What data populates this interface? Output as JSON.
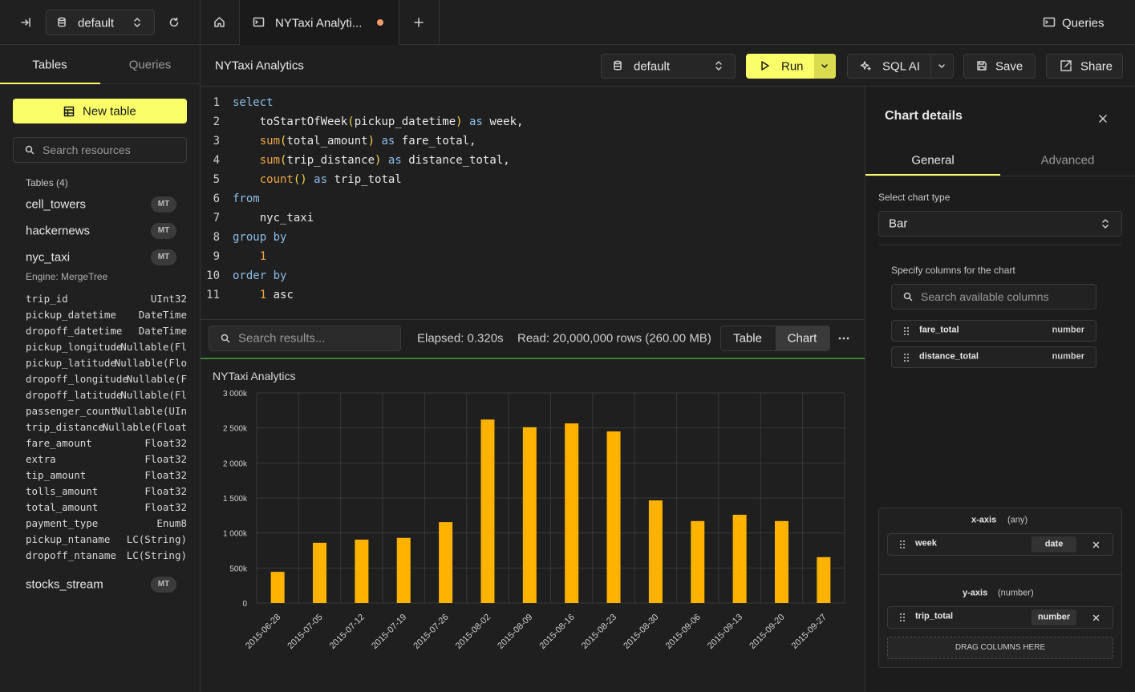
{
  "sidebar": {
    "database": "default",
    "tabs": [
      "Tables",
      "Queries"
    ],
    "new_table": "New table",
    "search_placeholder": "Search resources",
    "tables_heading": "Tables (4)",
    "tables": [
      {
        "name": "cell_towers",
        "badge": "MT"
      },
      {
        "name": "hackernews",
        "badge": "MT"
      },
      {
        "name": "nyc_taxi",
        "badge": "MT",
        "engine": "Engine: MergeTree",
        "columns": [
          {
            "name": "trip_id",
            "type": "UInt32"
          },
          {
            "name": "pickup_datetime",
            "type": "DateTime"
          },
          {
            "name": "dropoff_datetime",
            "type": "DateTime"
          },
          {
            "name": "pickup_longitude",
            "type": "Nullable(Fl"
          },
          {
            "name": "pickup_latitude",
            "type": "Nullable(Flo"
          },
          {
            "name": "dropoff_longitude",
            "type": "Nullable(F"
          },
          {
            "name": "dropoff_latitude",
            "type": "Nullable(Fl"
          },
          {
            "name": "passenger_count",
            "type": "Nullable(UIn"
          },
          {
            "name": "trip_distance",
            "type": "Nullable(Float"
          },
          {
            "name": "fare_amount",
            "type": "Float32"
          },
          {
            "name": "extra",
            "type": "Float32"
          },
          {
            "name": "tip_amount",
            "type": "Float32"
          },
          {
            "name": "tolls_amount",
            "type": "Float32"
          },
          {
            "name": "total_amount",
            "type": "Float32"
          },
          {
            "name": "payment_type",
            "type": "Enum8"
          },
          {
            "name": "pickup_ntaname",
            "type": "LC(String)"
          },
          {
            "name": "dropoff_ntaname",
            "type": "LC(String)"
          }
        ]
      },
      {
        "name": "stocks_stream",
        "badge": "MT"
      }
    ]
  },
  "tabs": {
    "active_tab": "NYTaxi Analyti...",
    "queries": "Queries"
  },
  "toolbar": {
    "title": "NYTaxi Analytics",
    "database": "default",
    "run": "Run",
    "sql_ai": "SQL AI",
    "save": "Save",
    "share": "Share"
  },
  "editor": {
    "lines": [
      {
        "n": 1,
        "tokens": [
          {
            "t": "select",
            "c": "#8cbde8"
          }
        ]
      },
      {
        "n": 2,
        "tokens": [
          {
            "t": "    toStartOfWeek",
            "c": "#e8e8e8"
          },
          {
            "t": "(",
            "c": "#f2d64b"
          },
          {
            "t": "pickup_datetime",
            "c": "#e8e8e8"
          },
          {
            "t": ")",
            "c": "#f2d64b"
          },
          {
            "t": " as ",
            "c": "#8cbde8"
          },
          {
            "t": "week,",
            "c": "#e8e8e8"
          }
        ]
      },
      {
        "n": 3,
        "tokens": [
          {
            "t": "    sum",
            "c": "#f0a646"
          },
          {
            "t": "(",
            "c": "#f2d64b"
          },
          {
            "t": "total_amount",
            "c": "#e8e8e8"
          },
          {
            "t": ")",
            "c": "#f2d64b"
          },
          {
            "t": " as ",
            "c": "#8cbde8"
          },
          {
            "t": "fare_total,",
            "c": "#e8e8e8"
          }
        ]
      },
      {
        "n": 4,
        "tokens": [
          {
            "t": "    sum",
            "c": "#f0a646"
          },
          {
            "t": "(",
            "c": "#f2d64b"
          },
          {
            "t": "trip_distance",
            "c": "#e8e8e8"
          },
          {
            "t": ")",
            "c": "#f2d64b"
          },
          {
            "t": " as ",
            "c": "#8cbde8"
          },
          {
            "t": "distance_total,",
            "c": "#e8e8e8"
          }
        ]
      },
      {
        "n": 5,
        "tokens": [
          {
            "t": "    count",
            "c": "#f0a646"
          },
          {
            "t": "()",
            "c": "#f2d64b"
          },
          {
            "t": " as ",
            "c": "#8cbde8"
          },
          {
            "t": "trip_total",
            "c": "#e8e8e8"
          }
        ]
      },
      {
        "n": 6,
        "tokens": [
          {
            "t": "from",
            "c": "#8cbde8"
          }
        ]
      },
      {
        "n": 7,
        "tokens": [
          {
            "t": "    nyc_taxi",
            "c": "#e8e8e8"
          }
        ]
      },
      {
        "n": 8,
        "tokens": [
          {
            "t": "group by",
            "c": "#8cbde8"
          }
        ]
      },
      {
        "n": 9,
        "tokens": [
          {
            "t": "    1",
            "c": "#f0a646"
          }
        ]
      },
      {
        "n": 10,
        "tokens": [
          {
            "t": "order by",
            "c": "#8cbde8"
          }
        ]
      },
      {
        "n": 11,
        "tokens": [
          {
            "t": "    1",
            "c": "#f0a646"
          },
          {
            "t": " asc",
            "c": "#e8e8e8"
          }
        ]
      }
    ]
  },
  "results": {
    "search_placeholder": "Search results...",
    "elapsed": "Elapsed: 0.320s",
    "read": "Read: 20,000,000 rows (260.00 MB)",
    "views": [
      "Table",
      "Chart"
    ]
  },
  "chart_data": {
    "type": "bar",
    "title": "NYTaxi Analytics",
    "x": [
      "2015-06-28",
      "2015-07-05",
      "2015-07-12",
      "2015-07-19",
      "2015-07-26",
      "2015-08-02",
      "2015-08-09",
      "2015-08-16",
      "2015-08-23",
      "2015-08-30",
      "2015-09-06",
      "2015-09-13",
      "2015-09-20",
      "2015-09-27"
    ],
    "values": [
      445000,
      860000,
      905000,
      930000,
      1155000,
      2620000,
      2510000,
      2565000,
      2450000,
      1465000,
      1170000,
      1260000,
      1170000,
      655000
    ],
    "color": "#ffb300",
    "ylim": [
      0,
      3000000
    ],
    "yticks": [
      0,
      {
        "value": 500000,
        "label": "500k"
      },
      {
        "value": 1000000,
        "label": "1 000k"
      },
      {
        "value": 1500000,
        "label": "1 500k"
      },
      {
        "value": 2000000,
        "label": "2 000k"
      },
      {
        "value": 2500000,
        "label": "2 500k"
      },
      {
        "value": 3000000,
        "label": "3 000k"
      }
    ],
    "grid": true
  },
  "chart_details": {
    "title": "Chart details",
    "tabs": [
      "General",
      "Advanced"
    ],
    "chart_type_label": "Select chart type",
    "chart_type": "Bar",
    "columns_label": "Specify columns for the chart",
    "search_placeholder": "Search available columns",
    "columns": [
      {
        "name": "fare_total",
        "type": "number"
      },
      {
        "name": "distance_total",
        "type": "number"
      }
    ],
    "x_axis": {
      "label": "x-axis",
      "hint": "(any)",
      "column": {
        "name": "week",
        "type": "date"
      }
    },
    "y_axis": {
      "label": "y-axis",
      "hint": "(number)",
      "column": {
        "name": "trip_total",
        "type": "number"
      }
    },
    "drop_zone": "DRAG COLUMNS HERE"
  }
}
